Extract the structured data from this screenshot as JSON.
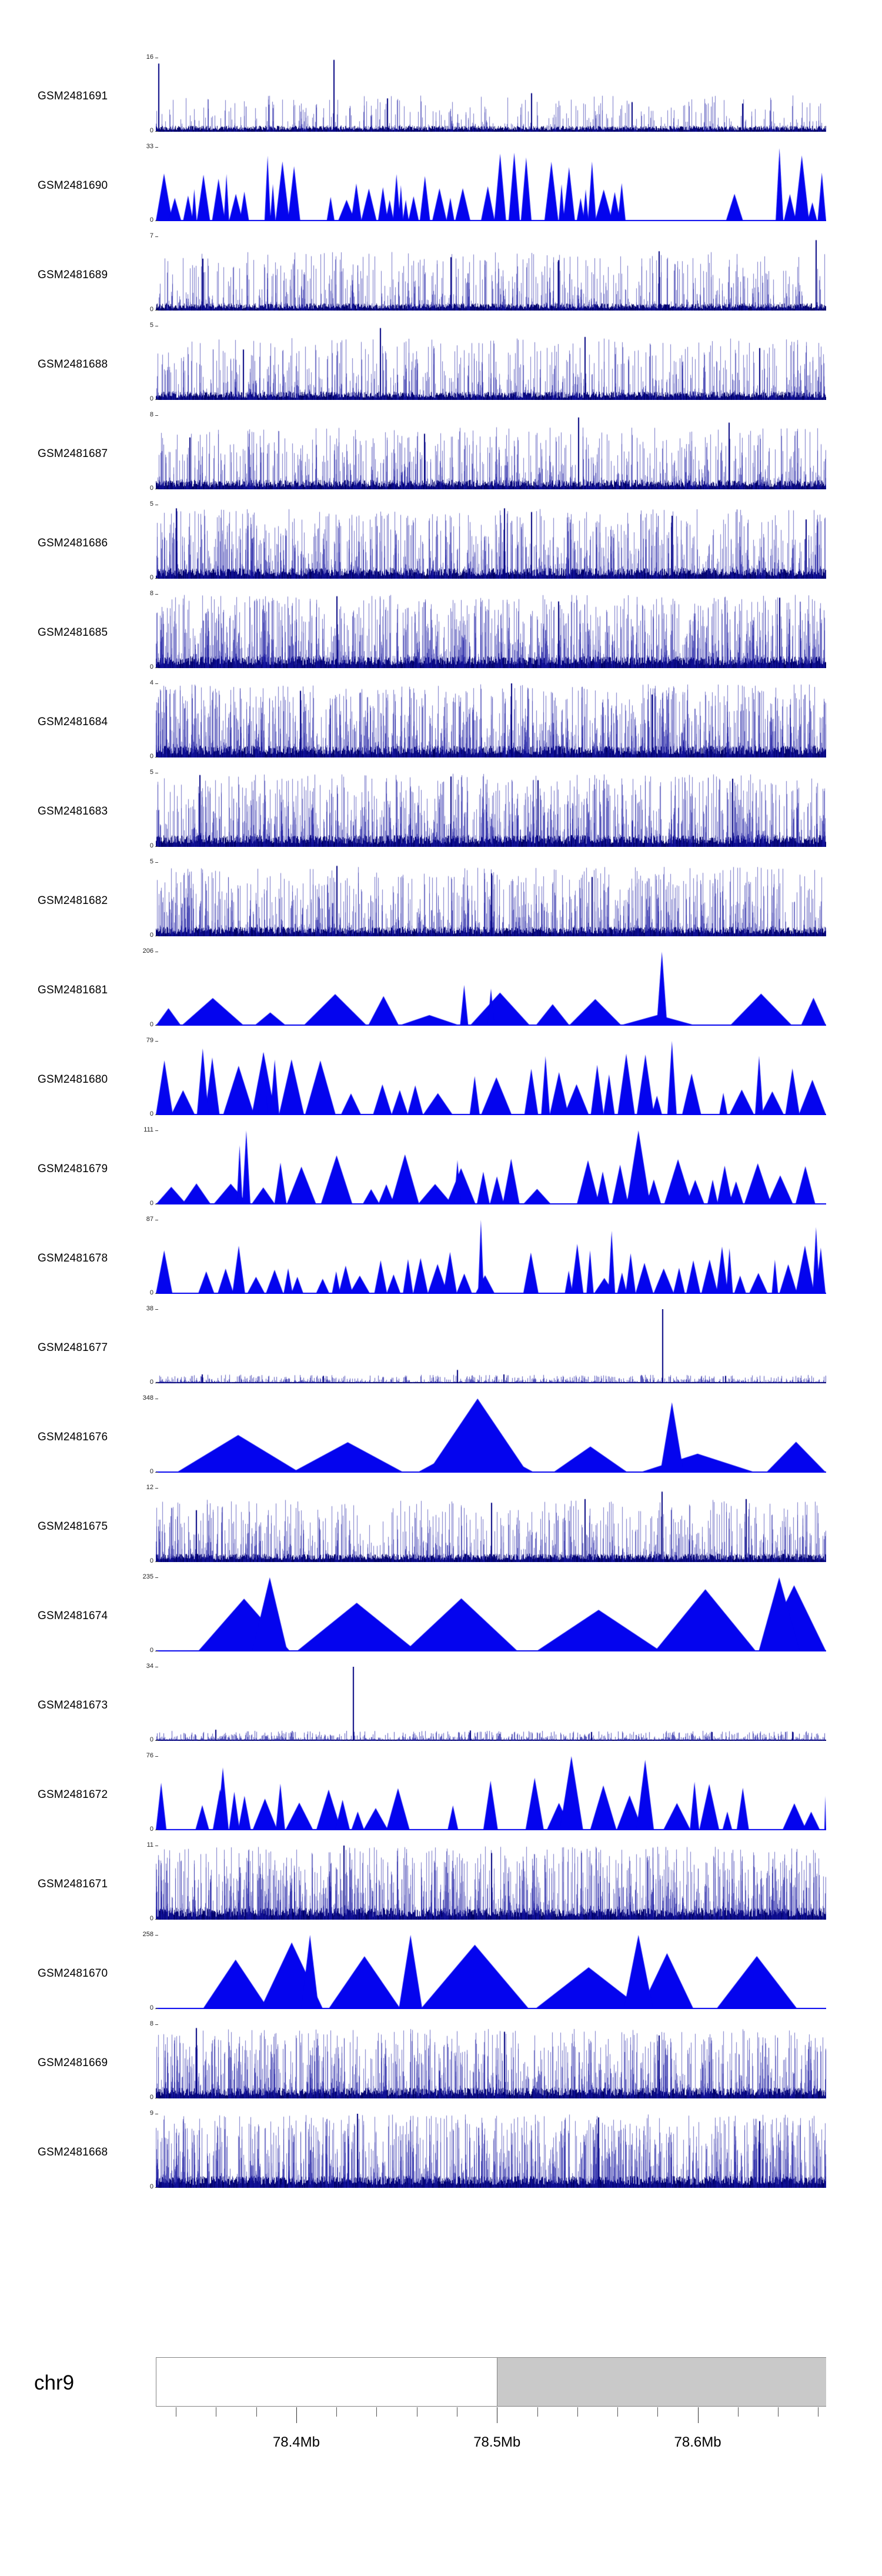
{
  "chart_data": {
    "type": "area",
    "legend": "none",
    "grid": false,
    "signal_colors": {
      "bars": "#00008b",
      "peaks": "#0404ee",
      "spike": "#000080"
    },
    "tracks": [
      {
        "label": "GSM2481691",
        "ymax": "16",
        "ymin": "0",
        "style": "bars",
        "seed": 11,
        "density": 0.6,
        "hpow": 3.5,
        "hmax": 0.45,
        "base": 0.05,
        "spikes": [
          {
            "x": 0.004,
            "h": 0.92
          },
          {
            "x": 0.265,
            "h": 0.97
          },
          {
            "x": 0.345,
            "h": 0.45
          },
          {
            "x": 0.56,
            "h": 0.52
          },
          {
            "x": 0.71,
            "h": 0.4
          },
          {
            "x": 0.875,
            "h": 0.38
          }
        ]
      },
      {
        "label": "GSM2481690",
        "ymax": "33",
        "ymin": "0",
        "style": "peaks",
        "seed": 12,
        "min_w": 8,
        "max_w": 30,
        "min_h": 0.25,
        "max_h": 1.0,
        "hpow": 1.2,
        "gap": 0.18,
        "spikes": []
      },
      {
        "label": "GSM2481689",
        "ymax": "7",
        "ymin": "0",
        "style": "bars",
        "seed": 13,
        "density": 0.8,
        "hpow": 2.6,
        "hmax": 0.75,
        "base": 0.06,
        "spikes": [
          {
            "x": 0.07,
            "h": 0.7
          },
          {
            "x": 0.44,
            "h": 0.72
          },
          {
            "x": 0.6,
            "h": 0.68
          },
          {
            "x": 0.75,
            "h": 0.8
          },
          {
            "x": 0.985,
            "h": 0.95
          }
        ]
      },
      {
        "label": "GSM2481688",
        "ymax": "5",
        "ymin": "0",
        "style": "bars",
        "seed": 14,
        "density": 0.9,
        "hpow": 2.6,
        "hmax": 0.8,
        "base": 0.07,
        "spikes": [
          {
            "x": 0.13,
            "h": 0.68
          },
          {
            "x": 0.335,
            "h": 0.97
          },
          {
            "x": 0.64,
            "h": 0.85
          },
          {
            "x": 0.9,
            "h": 0.7
          }
        ]
      },
      {
        "label": "GSM2481687",
        "ymax": "8",
        "ymin": "0",
        "style": "bars",
        "seed": 15,
        "density": 0.95,
        "hpow": 2.5,
        "hmax": 0.8,
        "base": 0.08,
        "spikes": [
          {
            "x": 0.05,
            "h": 0.7
          },
          {
            "x": 0.4,
            "h": 0.75
          },
          {
            "x": 0.63,
            "h": 0.97
          },
          {
            "x": 0.855,
            "h": 0.9
          }
        ]
      },
      {
        "label": "GSM2481686",
        "ymax": "5",
        "ymin": "0",
        "style": "bars",
        "seed": 16,
        "density": 1.1,
        "hpow": 2.2,
        "hmax": 0.9,
        "base": 0.09,
        "spikes": [
          {
            "x": 0.03,
            "h": 0.95
          },
          {
            "x": 0.52,
            "h": 0.95
          },
          {
            "x": 0.56,
            "h": 0.9
          },
          {
            "x": 0.77,
            "h": 0.85
          },
          {
            "x": 0.97,
            "h": 0.8
          }
        ]
      },
      {
        "label": "GSM2481685",
        "ymax": "8",
        "ymin": "0",
        "style": "bars",
        "seed": 17,
        "density": 1.3,
        "hpow": 2.0,
        "hmax": 0.95,
        "base": 0.1,
        "spikes": [
          {
            "x": 0.27,
            "h": 0.97
          },
          {
            "x": 0.6,
            "h": 0.9
          },
          {
            "x": 0.93,
            "h": 0.95
          }
        ]
      },
      {
        "label": "GSM2481684",
        "ymax": "4",
        "ymin": "0",
        "style": "bars",
        "seed": 18,
        "density": 1.3,
        "hpow": 1.9,
        "hmax": 0.95,
        "base": 0.1,
        "spikes": [
          {
            "x": 0.215,
            "h": 0.9
          },
          {
            "x": 0.53,
            "h": 1.0
          },
          {
            "x": 0.74,
            "h": 0.85
          }
        ]
      },
      {
        "label": "GSM2481683",
        "ymax": "5",
        "ymin": "0",
        "style": "bars",
        "seed": 19,
        "density": 1.25,
        "hpow": 2.0,
        "hmax": 0.95,
        "base": 0.1,
        "spikes": [
          {
            "x": 0.065,
            "h": 0.97
          },
          {
            "x": 0.44,
            "h": 0.95
          },
          {
            "x": 0.57,
            "h": 0.9
          },
          {
            "x": 0.86,
            "h": 0.92
          }
        ]
      },
      {
        "label": "GSM2481682",
        "ymax": "5",
        "ymin": "0",
        "style": "bars",
        "seed": 20,
        "density": 1.1,
        "hpow": 2.2,
        "hmax": 0.9,
        "base": 0.08,
        "spikes": [
          {
            "x": 0.27,
            "h": 0.95
          },
          {
            "x": 0.5,
            "h": 0.85
          },
          {
            "x": 0.65,
            "h": 0.8
          }
        ]
      },
      {
        "label": "GSM2481681",
        "ymax": "206",
        "ymin": "0",
        "style": "peaks",
        "seed": 21,
        "min_w": 40,
        "max_w": 150,
        "min_h": 0.12,
        "max_h": 0.45,
        "hpow": 1.3,
        "gap": 0.25,
        "spikes": [
          {
            "x": 0.46,
            "w": 14,
            "h": 0.55
          },
          {
            "x": 0.5,
            "w": 12,
            "h": 0.5
          },
          {
            "x": 0.755,
            "w": 18,
            "h": 1.0
          }
        ]
      },
      {
        "label": "GSM2481680",
        "ymax": "79",
        "ymin": "0",
        "style": "peaks",
        "seed": 22,
        "min_w": 14,
        "max_w": 55,
        "min_h": 0.25,
        "max_h": 0.85,
        "hpow": 1.2,
        "gap": 0.2,
        "spikes": [
          {
            "x": 0.07,
            "w": 20,
            "h": 0.9
          },
          {
            "x": 0.16,
            "w": 16,
            "h": 0.85
          },
          {
            "x": 0.77,
            "w": 16,
            "h": 1.0
          },
          {
            "x": 0.9,
            "w": 14,
            "h": 0.8
          }
        ]
      },
      {
        "label": "GSM2481679",
        "ymax": "111",
        "ymin": "0",
        "style": "peaks",
        "seed": 23,
        "min_w": 18,
        "max_w": 60,
        "min_h": 0.2,
        "max_h": 0.7,
        "hpow": 1.3,
        "gap": 0.25,
        "spikes": [
          {
            "x": 0.125,
            "w": 10,
            "h": 0.8
          },
          {
            "x": 0.135,
            "w": 14,
            "h": 1.0
          },
          {
            "x": 0.45,
            "w": 12,
            "h": 0.6
          },
          {
            "x": 0.72,
            "w": 40,
            "h": 1.0
          }
        ]
      },
      {
        "label": "GSM2481678",
        "ymax": "87",
        "ymin": "0",
        "style": "peaks",
        "seed": 24,
        "min_w": 10,
        "max_w": 36,
        "min_h": 0.2,
        "max_h": 0.7,
        "hpow": 1.2,
        "gap": 0.18,
        "spikes": [
          {
            "x": 0.485,
            "w": 10,
            "h": 1.0
          },
          {
            "x": 0.68,
            "w": 12,
            "h": 0.85
          },
          {
            "x": 0.985,
            "w": 12,
            "h": 0.9
          }
        ]
      },
      {
        "label": "GSM2481677",
        "ymax": "38",
        "ymin": "0",
        "style": "sparse",
        "seed": 25,
        "noise": 0.05,
        "spikes": [
          {
            "x": 0.07,
            "h": 0.12
          },
          {
            "x": 0.25,
            "h": 0.1
          },
          {
            "x": 0.45,
            "h": 0.18
          },
          {
            "x": 0.52,
            "h": 0.12
          },
          {
            "x": 0.757,
            "h": 1.0
          },
          {
            "x": 0.85,
            "h": 0.1
          }
        ]
      },
      {
        "label": "GSM2481676",
        "ymax": "348",
        "ymin": "0",
        "style": "peaks",
        "seed": 26,
        "min_w": 80,
        "max_w": 240,
        "min_h": 0.25,
        "max_h": 0.6,
        "hpow": 1.1,
        "gap": 0.3,
        "spikes": [
          {
            "x": 0.48,
            "w": 170,
            "h": 1.0
          },
          {
            "x": 0.77,
            "w": 40,
            "h": 0.95
          }
        ]
      },
      {
        "label": "GSM2481675",
        "ymax": "12",
        "ymin": "0",
        "style": "bars",
        "seed": 27,
        "density": 0.9,
        "hpow": 2.2,
        "hmax": 0.8,
        "base": 0.07,
        "spikes": [
          {
            "x": 0.06,
            "h": 0.7
          },
          {
            "x": 0.5,
            "h": 0.8
          },
          {
            "x": 0.64,
            "h": 0.85
          },
          {
            "x": 0.755,
            "h": 0.95
          },
          {
            "x": 0.88,
            "h": 0.85
          }
        ]
      },
      {
        "label": "GSM2481674",
        "ymax": "235",
        "ymin": "0",
        "style": "peaks",
        "seed": 28,
        "min_w": 100,
        "max_w": 240,
        "min_h": 0.5,
        "max_h": 0.95,
        "hpow": 1.0,
        "gap": 0.22,
        "spikes": [
          {
            "x": 0.17,
            "w": 60,
            "h": 1.0
          },
          {
            "x": 0.93,
            "w": 70,
            "h": 1.0
          }
        ]
      },
      {
        "label": "GSM2481673",
        "ymax": "34",
        "ymin": "0",
        "style": "sparse",
        "seed": 29,
        "noise": 0.06,
        "spikes": [
          {
            "x": 0.09,
            "h": 0.15
          },
          {
            "x": 0.295,
            "h": 1.0
          },
          {
            "x": 0.47,
            "h": 0.14
          },
          {
            "x": 0.65,
            "h": 0.12
          },
          {
            "x": 0.83,
            "h": 0.12
          },
          {
            "x": 0.95,
            "h": 0.12
          }
        ]
      },
      {
        "label": "GSM2481672",
        "ymax": "76",
        "ymin": "0",
        "style": "peaks",
        "seed": 30,
        "min_w": 14,
        "max_w": 50,
        "min_h": 0.25,
        "max_h": 0.8,
        "hpow": 1.2,
        "gap": 0.2,
        "spikes": [
          {
            "x": 0.1,
            "w": 20,
            "h": 0.85
          },
          {
            "x": 0.62,
            "w": 40,
            "h": 1.0
          },
          {
            "x": 0.73,
            "w": 30,
            "h": 0.95
          }
        ]
      },
      {
        "label": "GSM2481671",
        "ymax": "11",
        "ymin": "0",
        "style": "bars",
        "seed": 31,
        "density": 1.3,
        "hpow": 1.9,
        "hmax": 0.95,
        "base": 0.1,
        "spikes": [
          {
            "x": 0.28,
            "h": 1.0
          },
          {
            "x": 0.5,
            "h": 0.9
          }
        ]
      },
      {
        "label": "GSM2481670",
        "ymax": "258",
        "ymin": "0",
        "style": "peaks",
        "seed": 32,
        "min_w": 90,
        "max_w": 210,
        "min_h": 0.45,
        "max_h": 0.95,
        "hpow": 1.0,
        "gap": 0.25,
        "xstart": 0.07,
        "xend": 0.97,
        "spikes": [
          {
            "x": 0.23,
            "w": 30,
            "h": 1.0
          },
          {
            "x": 0.38,
            "w": 40,
            "h": 1.0
          },
          {
            "x": 0.72,
            "w": 50,
            "h": 1.0
          }
        ]
      },
      {
        "label": "GSM2481669",
        "ymax": "8",
        "ymin": "0",
        "style": "bars",
        "seed": 33,
        "density": 1.2,
        "hpow": 2.1,
        "hmax": 0.9,
        "base": 0.09,
        "spikes": [
          {
            "x": 0.06,
            "h": 0.95
          },
          {
            "x": 0.52,
            "h": 0.9
          },
          {
            "x": 0.75,
            "h": 0.85
          }
        ]
      },
      {
        "label": "GSM2481668",
        "ymax": "9",
        "ymin": "0",
        "style": "bars",
        "seed": 34,
        "density": 1.3,
        "hpow": 1.8,
        "hmax": 0.95,
        "base": 0.1,
        "spikes": [
          {
            "x": 0.3,
            "h": 1.0
          },
          {
            "x": 0.66,
            "h": 0.95
          },
          {
            "x": 0.9,
            "h": 0.9
          }
        ]
      }
    ],
    "ruler": {
      "chromosome": "chr9",
      "start_mb": 78.33,
      "end_mb": 78.664,
      "minor_tick_step_mb": 0.02,
      "major_ticks": [
        {
          "mb": 78.4,
          "label": "78.4Mb"
        },
        {
          "mb": 78.5,
          "label": "78.5Mb"
        },
        {
          "mb": 78.6,
          "label": "78.6Mb"
        }
      ],
      "highlight": {
        "start_mb": 78.5,
        "end_mb": 78.664,
        "color": "#c9c9c9"
      }
    }
  }
}
